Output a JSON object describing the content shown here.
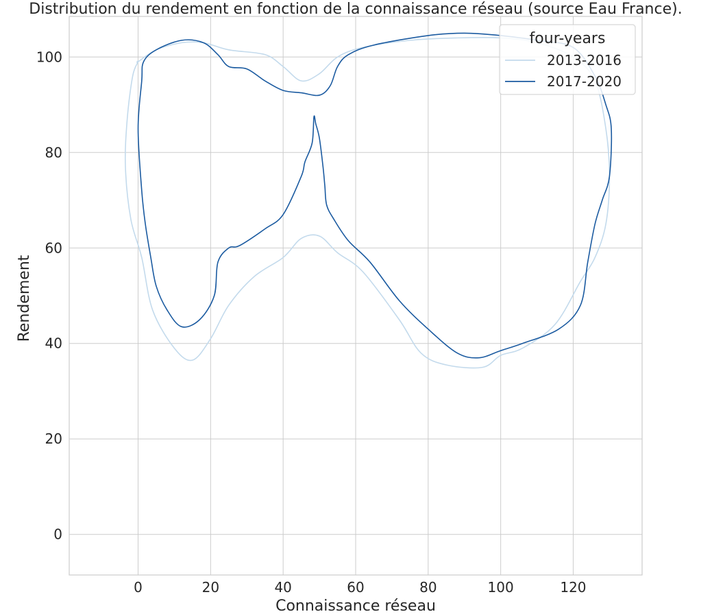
{
  "chart_data": {
    "type": "line",
    "title": "Distribution du rendement en fonction de la connaissance réseau (source Eau France).",
    "xlabel": "Connaissance réseau",
    "ylabel": "Rendement",
    "xlim": [
      -19,
      139
    ],
    "ylim": [
      -8.5,
      108.5
    ],
    "xticks": [
      0,
      20,
      40,
      60,
      80,
      100,
      120
    ],
    "yticks": [
      0,
      20,
      40,
      60,
      80,
      100
    ],
    "grid": true,
    "legend": {
      "title": "four-years",
      "position": "top-right"
    },
    "series": [
      {
        "name": "2013-2016",
        "color": "#c3daec",
        "x": [
          0,
          5,
          12,
          18,
          25,
          35,
          40,
          45,
          50,
          55,
          62,
          75,
          88,
          100,
          110,
          120,
          126,
          129,
          130,
          129,
          126,
          122,
          115,
          106,
          100,
          95,
          85,
          78,
          72,
          62,
          55,
          50,
          45,
          40,
          32,
          25,
          20,
          15,
          10,
          4,
          1,
          -2,
          -3.5,
          -3,
          -1.5,
          0
        ],
        "y": [
          99,
          101.5,
          103,
          103,
          101.5,
          100.5,
          98,
          95,
          96.5,
          100,
          102,
          103.5,
          104,
          104,
          103,
          100,
          95,
          85,
          75,
          65,
          58,
          53,
          44,
          39,
          37.5,
          35,
          35.5,
          38,
          45,
          55,
          59,
          62.5,
          62,
          58,
          54,
          48,
          41,
          36.5,
          39,
          47,
          58,
          66,
          77,
          87,
          96,
          99
        ]
      },
      {
        "name": "2017-2020",
        "color": "#1a5aa0",
        "x": [
          1.5,
          5,
          12,
          18,
          22,
          25,
          30,
          35,
          40,
          45,
          50,
          53,
          55,
          58,
          65,
          80,
          90,
          100,
          110,
          120,
          126,
          129,
          130.5,
          130,
          128,
          126,
          124,
          122,
          116,
          106,
          100,
          94,
          88,
          80,
          72,
          64,
          58,
          54,
          52,
          51.5,
          51,
          50,
          49,
          48.5,
          48,
          46,
          45,
          40,
          35,
          28,
          25,
          22,
          21,
          17,
          12,
          8,
          5,
          3.5,
          2,
          1,
          0,
          1
        ],
        "y": [
          99,
          101.5,
          103.5,
          103,
          100.5,
          98,
          97.5,
          95,
          93,
          92.5,
          92,
          94,
          98,
          100.5,
          102.5,
          104.5,
          105,
          104.5,
          103.5,
          102,
          96,
          90,
          85,
          75,
          70,
          65,
          57,
          48,
          43,
          40,
          38.5,
          37,
          38,
          43,
          49,
          57,
          61.5,
          66,
          69,
          73,
          77,
          83,
          86,
          87.5,
          82,
          78,
          75,
          67,
          64,
          60.5,
          60,
          57,
          50,
          45,
          43.5,
          47,
          52,
          58,
          65,
          72,
          85,
          95
        ]
      }
    ]
  }
}
